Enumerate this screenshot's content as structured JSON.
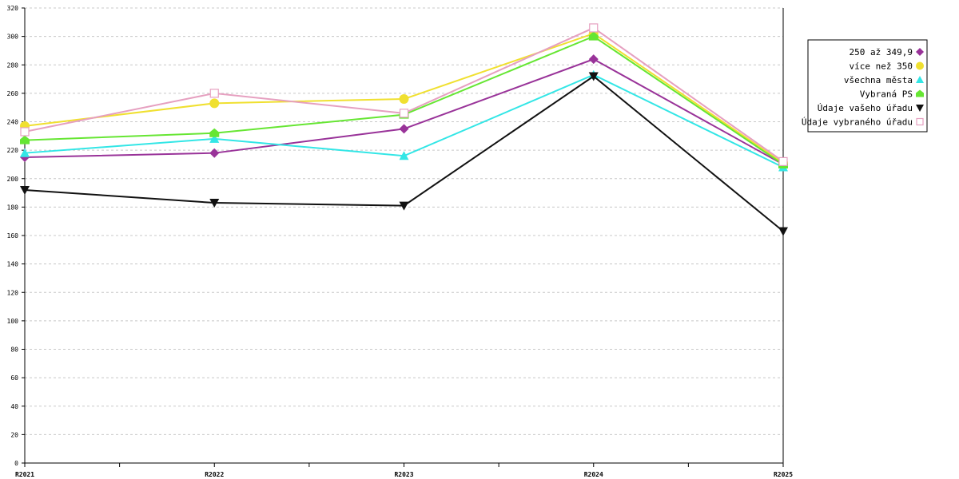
{
  "chart_data": {
    "type": "line",
    "categories": [
      "R2021",
      "R2022",
      "R2023",
      "R2024",
      "R2025"
    ],
    "ylim": [
      0,
      320
    ],
    "yticks": [
      0,
      20,
      40,
      60,
      80,
      100,
      120,
      140,
      160,
      180,
      200,
      220,
      240,
      260,
      280,
      300,
      320
    ],
    "grid": "horizontal dashed",
    "legend_position": "right",
    "series": [
      {
        "name": "250 až 349,9",
        "color": "#993399",
        "marker": "diamond",
        "values": [
          215,
          218,
          235,
          284,
          210
        ]
      },
      {
        "name": "více než 350",
        "color": "#f0e030",
        "marker": "circle",
        "values": [
          237,
          253,
          256,
          302,
          211
        ]
      },
      {
        "name": "všechna města",
        "color": "#33e6e6",
        "marker": "triangle-up",
        "values": [
          218,
          228,
          216,
          273,
          208
        ]
      },
      {
        "name": "Vybraná PS",
        "color": "#66e633",
        "marker": "house",
        "values": [
          227,
          232,
          245,
          300,
          210
        ]
      },
      {
        "name": "Údaje vašeho úřadu",
        "color": "#111111",
        "marker": "triangle-down",
        "values": [
          192,
          183,
          181,
          272,
          163
        ]
      },
      {
        "name": "Údaje vybraného úřadu",
        "color": "#e6a0c0",
        "marker": "square-open",
        "values": [
          233,
          260,
          246,
          306,
          212
        ]
      }
    ]
  }
}
